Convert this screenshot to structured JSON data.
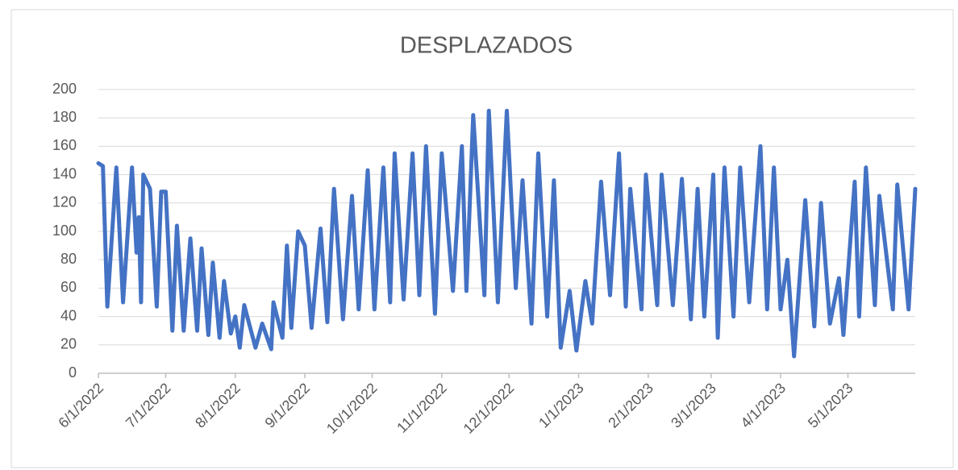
{
  "chart_data": {
    "type": "line",
    "title": "DESPLAZADOS",
    "x": [
      "2022-06-01",
      "2022-06-03",
      "2022-06-05",
      "2022-06-09",
      "2022-06-12",
      "2022-06-16",
      "2022-06-18",
      "2022-06-19",
      "2022-06-20",
      "2022-06-21",
      "2022-06-24",
      "2022-06-27",
      "2022-06-29",
      "2022-07-01",
      "2022-07-04",
      "2022-07-06",
      "2022-07-09",
      "2022-07-12",
      "2022-07-15",
      "2022-07-17",
      "2022-07-20",
      "2022-07-22",
      "2022-07-25",
      "2022-07-27",
      "2022-07-30",
      "2022-08-01",
      "2022-08-03",
      "2022-08-05",
      "2022-08-10",
      "2022-08-13",
      "2022-08-17",
      "2022-08-18",
      "2022-08-22",
      "2022-08-24",
      "2022-08-26",
      "2022-08-29",
      "2022-09-01",
      "2022-09-04",
      "2022-09-08",
      "2022-09-11",
      "2022-09-14",
      "2022-09-18",
      "2022-09-22",
      "2022-09-25",
      "2022-09-29",
      "2022-10-02",
      "2022-10-06",
      "2022-10-09",
      "2022-10-11",
      "2022-10-15",
      "2022-10-19",
      "2022-10-22",
      "2022-10-25",
      "2022-10-29",
      "2022-11-01",
      "2022-11-06",
      "2022-11-10",
      "2022-11-12",
      "2022-11-15",
      "2022-11-20",
      "2022-11-22",
      "2022-11-26",
      "2022-11-30",
      "2022-12-04",
      "2022-12-07",
      "2022-12-11",
      "2022-12-14",
      "2022-12-18",
      "2022-12-21",
      "2022-12-24",
      "2022-12-28",
      "2022-12-31",
      "2023-01-04",
      "2023-01-07",
      "2023-01-11",
      "2023-01-15",
      "2023-01-19",
      "2023-01-22",
      "2023-01-24",
      "2023-01-29",
      "2023-01-31",
      "2023-02-05",
      "2023-02-07",
      "2023-02-12",
      "2023-02-16",
      "2023-02-20",
      "2023-02-23",
      "2023-02-26",
      "2023-03-02",
      "2023-03-04",
      "2023-03-07",
      "2023-03-11",
      "2023-03-14",
      "2023-03-18",
      "2023-03-23",
      "2023-03-26",
      "2023-03-29",
      "2023-04-01",
      "2023-04-04",
      "2023-04-07",
      "2023-04-12",
      "2023-04-16",
      "2023-04-19",
      "2023-04-23",
      "2023-04-27",
      "2023-04-29",
      "2023-05-04",
      "2023-05-06",
      "2023-05-09",
      "2023-05-13",
      "2023-05-15",
      "2023-05-21",
      "2023-05-23",
      "2023-05-28",
      "2023-05-31"
    ],
    "series": [
      {
        "name": "DESPLAZADOS",
        "color": "#4472c4",
        "values": [
          148,
          146,
          47,
          145,
          50,
          145,
          85,
          110,
          50,
          140,
          130,
          47,
          128,
          128,
          30,
          104,
          30,
          95,
          30,
          88,
          27,
          78,
          25,
          65,
          28,
          40,
          18,
          48,
          18,
          35,
          17,
          50,
          25,
          90,
          32,
          100,
          90,
          32,
          102,
          36,
          130,
          38,
          125,
          45,
          143,
          45,
          145,
          50,
          155,
          52,
          155,
          55,
          160,
          42,
          155,
          58,
          160,
          58,
          182,
          55,
          185,
          50,
          185,
          60,
          136,
          35,
          155,
          40,
          136,
          18,
          58,
          16,
          65,
          35,
          135,
          55,
          155,
          47,
          130,
          45,
          140,
          48,
          140,
          48,
          137,
          38,
          130,
          40,
          140,
          25,
          145,
          40,
          145,
          50,
          160,
          45,
          145,
          45,
          80,
          12,
          122,
          33,
          120,
          35,
          67,
          27,
          135,
          40,
          145,
          48,
          125,
          45,
          133,
          45,
          130
        ]
      }
    ],
    "xlim": [
      "2022-06-01",
      "2023-05-31"
    ],
    "xticks": [
      {
        "value": "2022-06-01",
        "label": "6/1/2022"
      },
      {
        "value": "2022-07-01",
        "label": "7/1/2022"
      },
      {
        "value": "2022-08-01",
        "label": "8/1/2022"
      },
      {
        "value": "2022-09-01",
        "label": "9/1/2022"
      },
      {
        "value": "2022-10-01",
        "label": "10/1/2022"
      },
      {
        "value": "2022-11-01",
        "label": "11/1/2022"
      },
      {
        "value": "2022-12-01",
        "label": "12/1/2022"
      },
      {
        "value": "2023-01-01",
        "label": "1/1/2023"
      },
      {
        "value": "2023-02-01",
        "label": "2/1/2023"
      },
      {
        "value": "2023-03-01",
        "label": "3/1/2023"
      },
      {
        "value": "2023-04-01",
        "label": "4/1/2023"
      },
      {
        "value": "2023-05-01",
        "label": "5/1/2023"
      }
    ],
    "ylim": [
      0,
      200
    ],
    "yticks": [
      0,
      20,
      40,
      60,
      80,
      100,
      120,
      140,
      160,
      180,
      200
    ],
    "grid": true
  }
}
